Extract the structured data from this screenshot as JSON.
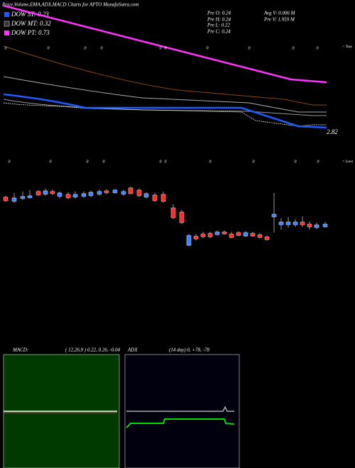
{
  "header": {
    "title": "Price,Volume,EMA,ADX,MACD Charts for APTO MunafaSutra.com"
  },
  "legend": [
    "DOW ST: 0.23",
    "DOW MT: 0.32",
    "DOW PT: 0.73"
  ],
  "pre": [
    "Pre  O: 0.24",
    "Pre  H: 0.24",
    "Pre  L: 0.22",
    "Pre  C: 0.24"
  ],
  "volume": [
    "Avg V: 0.006  M",
    "Pre  V: 1.959  M"
  ],
  "price_label": "2.82",
  "tops": {
    "label": "< Tops",
    "marks": [
      "0",
      "0",
      "0",
      "0",
      "0",
      "0",
      "0",
      "0",
      "0",
      "0"
    ]
  },
  "lows": {
    "label": "< Lows",
    "marks": [
      "0",
      "0",
      "0",
      "0",
      "0",
      "0",
      "0",
      "0",
      "0",
      "0"
    ]
  },
  "macd": {
    "label": "MACD:",
    "params": "( 12,26,9 ) 0.22, 0.26, -0.04"
  },
  "adx": {
    "label": "ADX",
    "params": "(14  day) 0, +78, -78"
  }
}
